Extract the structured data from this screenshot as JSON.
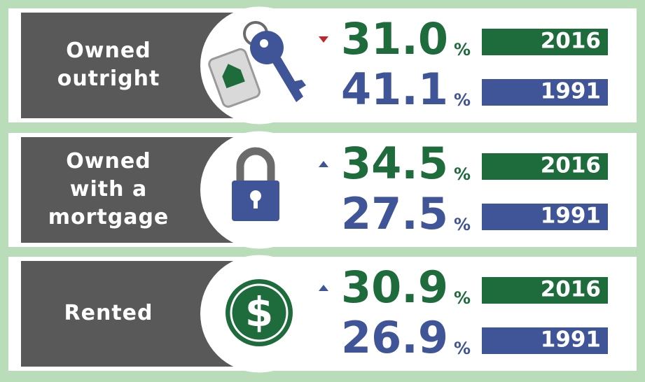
{
  "rows": [
    {
      "label": [
        "Owned",
        "outright"
      ],
      "trend": "down",
      "items": [
        {
          "value": "31.0",
          "unit": "%",
          "year": "2016"
        },
        {
          "value": "41.1",
          "unit": "%",
          "year": "1991"
        }
      ]
    },
    {
      "label": [
        "Owned",
        "with a",
        "mortgage"
      ],
      "trend": "up",
      "items": [
        {
          "value": "34.5",
          "unit": "%",
          "year": "2016"
        },
        {
          "value": "27.5",
          "unit": "%",
          "year": "1991"
        }
      ]
    },
    {
      "label": [
        "Rented"
      ],
      "trend": "up",
      "items": [
        {
          "value": "30.9",
          "unit": "%",
          "year": "2016"
        },
        {
          "value": "26.9",
          "unit": "%",
          "year": "1991"
        }
      ]
    }
  ]
}
